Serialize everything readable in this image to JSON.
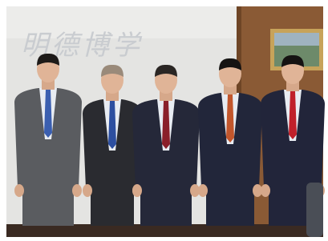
{
  "wall_inscription": "明德博学"
}
